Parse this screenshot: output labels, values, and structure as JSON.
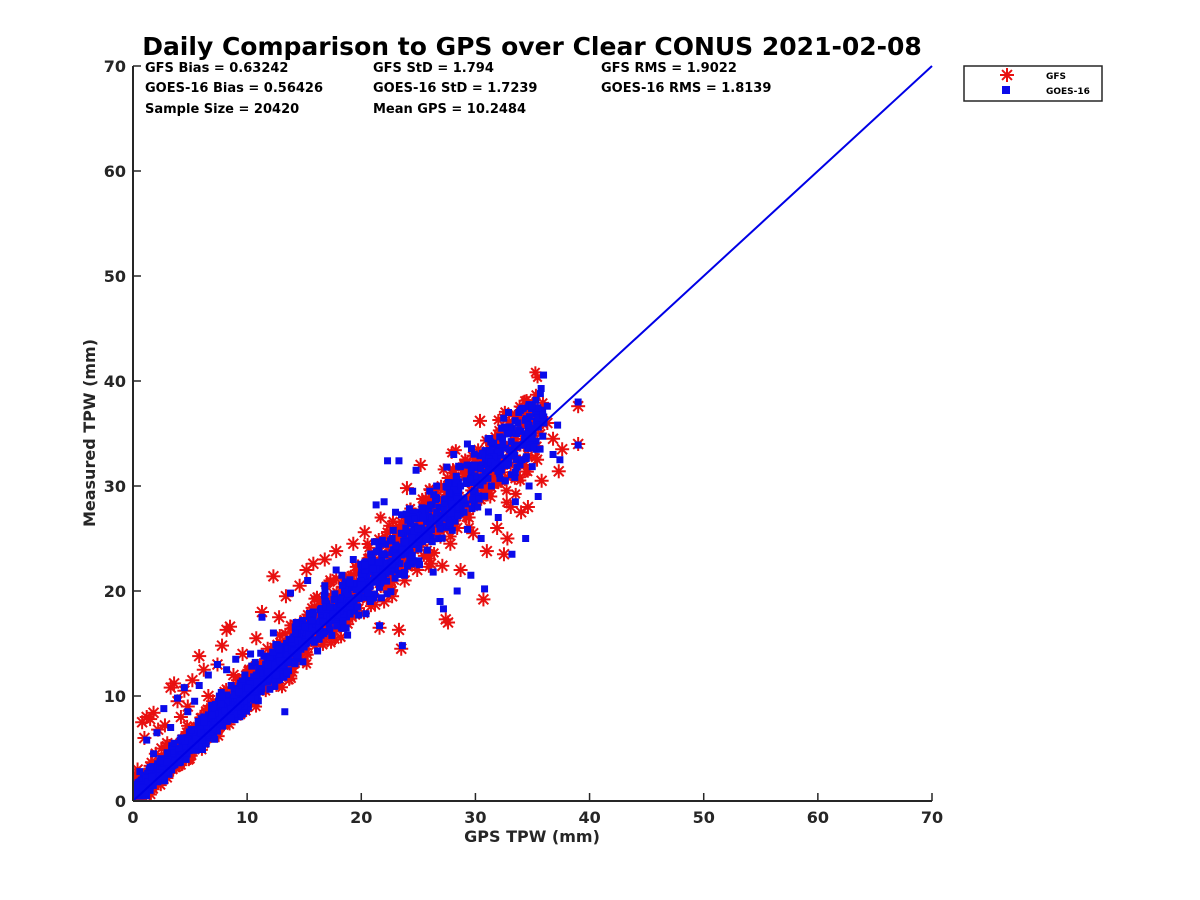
{
  "chart_data": {
    "type": "scatter",
    "title": "Daily Comparison to GPS over Clear CONUS 2021-02-08",
    "xlabel": "GPS TPW (mm)",
    "ylabel": "Measured TPW (mm)",
    "xlim": [
      0,
      70
    ],
    "ylim": [
      0,
      70
    ],
    "xticks": [
      "0",
      "10",
      "20",
      "30",
      "40",
      "50",
      "60",
      "70"
    ],
    "yticks": [
      "0",
      "10",
      "20",
      "30",
      "40",
      "50",
      "60",
      "70"
    ],
    "grid": false,
    "legend_position": "outside top-right",
    "stats": [
      "GFS Bias = 0.63242",
      "GFS StD = 1.794",
      "GFS RMS = 1.9022",
      "GOES-16 Bias = 0.56426",
      "GOES-16 StD = 1.7239",
      "GOES-16 RMS = 1.8139",
      "Sample Size = 20420",
      "Mean GPS = 10.2484"
    ],
    "reference_line": {
      "name": "1:1 line",
      "color": "#0000e6",
      "x": [
        0,
        70
      ],
      "y": [
        0,
        70
      ]
    },
    "series": [
      {
        "name": "GFS",
        "marker": "asterisk",
        "color": "#e81010",
        "points": [
          [
            0.2,
            2.5
          ],
          [
            0.4,
            3.0
          ],
          [
            0.6,
            1.8
          ],
          [
            0.8,
            7.5
          ],
          [
            1.0,
            6.0
          ],
          [
            1.2,
            8.0
          ],
          [
            1.5,
            7.8
          ],
          [
            1.8,
            8.4
          ],
          [
            2.0,
            4.5
          ],
          [
            2.2,
            6.8
          ],
          [
            2.5,
            5.0
          ],
          [
            2.8,
            7.2
          ],
          [
            3.0,
            5.5
          ],
          [
            3.3,
            10.8
          ],
          [
            3.6,
            11.2
          ],
          [
            3.9,
            9.5
          ],
          [
            4.2,
            8.0
          ],
          [
            4.5,
            10.5
          ],
          [
            4.8,
            9.0
          ],
          [
            5.2,
            11.5
          ],
          [
            5.5,
            7.0
          ],
          [
            5.8,
            13.8
          ],
          [
            6.2,
            12.5
          ],
          [
            6.6,
            10.0
          ],
          [
            7.0,
            9.5
          ],
          [
            7.4,
            13.0
          ],
          [
            7.8,
            14.8
          ],
          [
            8.2,
            16.3
          ],
          [
            8.5,
            16.6
          ],
          [
            8.8,
            12.0
          ],
          [
            9.2,
            11.5
          ],
          [
            9.6,
            14.0
          ],
          [
            10.2,
            12.5
          ],
          [
            10.8,
            15.5
          ],
          [
            11.3,
            18.0
          ],
          [
            11.8,
            14.5
          ],
          [
            12.3,
            21.4
          ],
          [
            12.8,
            17.5
          ],
          [
            13.4,
            19.5
          ],
          [
            14.0,
            16.0
          ],
          [
            14.6,
            20.5
          ],
          [
            15.2,
            22.0
          ],
          [
            15.8,
            22.6
          ],
          [
            16.3,
            19.0
          ],
          [
            16.8,
            23.0
          ],
          [
            17.3,
            21.0
          ],
          [
            17.8,
            23.8
          ],
          [
            18.3,
            19.5
          ],
          [
            18.8,
            20.5
          ],
          [
            19.3,
            24.5
          ],
          [
            19.8,
            22.0
          ],
          [
            20.3,
            25.6
          ],
          [
            20.8,
            21.5
          ],
          [
            21.2,
            18.7
          ],
          [
            21.6,
            16.5
          ],
          [
            22.0,
            19.0
          ],
          [
            22.3,
            24.5
          ],
          [
            22.7,
            19.5
          ],
          [
            23.0,
            23.0
          ],
          [
            23.3,
            16.3
          ],
          [
            23.5,
            14.5
          ],
          [
            23.8,
            21.0
          ],
          [
            24.0,
            29.8
          ],
          [
            24.3,
            27.0
          ],
          [
            24.6,
            24.0
          ],
          [
            24.9,
            22.0
          ],
          [
            25.2,
            32.0
          ],
          [
            25.5,
            27.5
          ],
          [
            25.8,
            23.5
          ],
          [
            26.1,
            22.6
          ],
          [
            26.4,
            26.0
          ],
          [
            26.8,
            28.5
          ],
          [
            27.1,
            22.4
          ],
          [
            27.4,
            17.3
          ],
          [
            27.6,
            17.0
          ],
          [
            27.8,
            24.5
          ],
          [
            28.1,
            30.5
          ],
          [
            28.4,
            26.0
          ],
          [
            28.7,
            22.0
          ],
          [
            29.0,
            31.5
          ],
          [
            29.4,
            27.0
          ],
          [
            29.8,
            25.5
          ],
          [
            30.1,
            33.0
          ],
          [
            30.4,
            36.2
          ],
          [
            30.7,
            19.2
          ],
          [
            31.0,
            23.8
          ],
          [
            31.3,
            29.0
          ],
          [
            31.6,
            34.0
          ],
          [
            31.9,
            26.0
          ],
          [
            32.2,
            30.5
          ],
          [
            32.5,
            23.5
          ],
          [
            32.8,
            25.0
          ],
          [
            33.1,
            28.0
          ],
          [
            33.4,
            31.0
          ],
          [
            33.7,
            35.0
          ],
          [
            34.0,
            27.5
          ],
          [
            34.3,
            32.0
          ],
          [
            34.6,
            28.0
          ],
          [
            35.0,
            34.0
          ],
          [
            35.4,
            32.5
          ],
          [
            35.8,
            30.5
          ],
          [
            36.3,
            36.0
          ],
          [
            36.8,
            34.5
          ],
          [
            37.3,
            31.4
          ],
          [
            37.6,
            33.5
          ],
          [
            39.0,
            37.6
          ],
          [
            39.0,
            34.0
          ]
        ]
      },
      {
        "name": "GOES-16",
        "marker": "square",
        "color": "#0b0bea",
        "points": [
          [
            0.3,
            1.5
          ],
          [
            0.6,
            2.8
          ],
          [
            0.9,
            1.2
          ],
          [
            1.2,
            5.8
          ],
          [
            1.5,
            3.2
          ],
          [
            1.8,
            4.5
          ],
          [
            2.1,
            6.5
          ],
          [
            2.4,
            3.8
          ],
          [
            2.7,
            8.8
          ],
          [
            3.0,
            4.6
          ],
          [
            3.3,
            7.0
          ],
          [
            3.6,
            5.5
          ],
          [
            3.9,
            9.8
          ],
          [
            4.2,
            6.0
          ],
          [
            4.5,
            10.8
          ],
          [
            4.8,
            8.5
          ],
          [
            5.1,
            6.8
          ],
          [
            5.4,
            9.5
          ],
          [
            5.8,
            11.0
          ],
          [
            6.2,
            8.0
          ],
          [
            6.6,
            12.0
          ],
          [
            7.0,
            9.0
          ],
          [
            7.4,
            13.0
          ],
          [
            7.8,
            10.0
          ],
          [
            8.2,
            12.5
          ],
          [
            8.6,
            11.0
          ],
          [
            9.0,
            13.5
          ],
          [
            9.4,
            9.5
          ],
          [
            9.8,
            12.0
          ],
          [
            10.3,
            14.0
          ],
          [
            10.8,
            12.0
          ],
          [
            11.3,
            17.5
          ],
          [
            11.8,
            13.0
          ],
          [
            12.3,
            16.0
          ],
          [
            12.8,
            14.5
          ],
          [
            13.3,
            8.5
          ],
          [
            13.8,
            19.8
          ],
          [
            14.3,
            17.0
          ],
          [
            14.8,
            15.0
          ],
          [
            15.3,
            21.0
          ],
          [
            15.8,
            18.0
          ],
          [
            16.3,
            16.5
          ],
          [
            16.8,
            20.5
          ],
          [
            17.3,
            18.5
          ],
          [
            17.8,
            22.0
          ],
          [
            18.3,
            21.5
          ],
          [
            18.8,
            15.8
          ],
          [
            19.3,
            23.0
          ],
          [
            19.8,
            20.0
          ],
          [
            20.3,
            22.5
          ],
          [
            20.8,
            19.0
          ],
          [
            21.3,
            28.2
          ],
          [
            21.6,
            16.7
          ],
          [
            22.0,
            28.5
          ],
          [
            22.3,
            32.4
          ],
          [
            22.7,
            25.0
          ],
          [
            23.0,
            27.5
          ],
          [
            23.3,
            32.4
          ],
          [
            23.6,
            14.8
          ],
          [
            23.9,
            26.0
          ],
          [
            24.2,
            24.0
          ],
          [
            24.5,
            29.5
          ],
          [
            24.8,
            31.5
          ],
          [
            25.1,
            22.5
          ],
          [
            25.4,
            27.0
          ],
          [
            25.7,
            25.0
          ],
          [
            26.0,
            29.5
          ],
          [
            26.3,
            21.8
          ],
          [
            26.6,
            27.5
          ],
          [
            26.9,
            19.0
          ],
          [
            27.2,
            18.3
          ],
          [
            27.5,
            31.8
          ],
          [
            27.8,
            26.5
          ],
          [
            28.1,
            33.0
          ],
          [
            28.4,
            20.0
          ],
          [
            28.7,
            30.0
          ],
          [
            29.0,
            27.5
          ],
          [
            29.3,
            34.0
          ],
          [
            29.6,
            21.5
          ],
          [
            29.9,
            32.0
          ],
          [
            30.2,
            28.0
          ],
          [
            30.5,
            25.0
          ],
          [
            30.8,
            20.2
          ],
          [
            31.1,
            34.5
          ],
          [
            31.4,
            30.0
          ],
          [
            31.7,
            32.0
          ],
          [
            32.0,
            27.0
          ],
          [
            32.3,
            35.5
          ],
          [
            32.6,
            30.5
          ],
          [
            32.9,
            37.0
          ],
          [
            33.2,
            23.5
          ],
          [
            33.5,
            28.5
          ],
          [
            33.8,
            37.0
          ],
          [
            34.1,
            32.5
          ],
          [
            34.4,
            25.0
          ],
          [
            34.7,
            30.0
          ],
          [
            35.0,
            35.5
          ],
          [
            35.5,
            29.0
          ],
          [
            36.0,
            36.0
          ],
          [
            36.3,
            37.6
          ],
          [
            36.8,
            33.0
          ],
          [
            37.2,
            35.8
          ],
          [
            37.4,
            32.5
          ],
          [
            39.0,
            38.0
          ],
          [
            39.0,
            33.9
          ]
        ]
      }
    ]
  }
}
